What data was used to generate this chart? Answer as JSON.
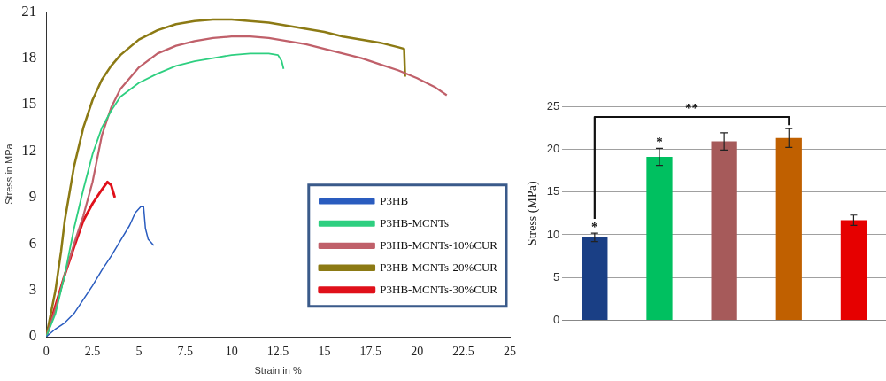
{
  "chart_data": [
    {
      "type": "line",
      "xlabel": "Strain in %",
      "ylabel": "Stress in MPa",
      "xlim": [
        0,
        25
      ],
      "ylim": [
        0,
        21
      ],
      "xticks": [
        0,
        2.5,
        5,
        7.5,
        10,
        12.5,
        15,
        17.5,
        20,
        22.5,
        25
      ],
      "yticks": [
        0,
        3,
        6,
        9,
        12,
        15,
        18,
        21
      ],
      "grid": false,
      "legend": "right",
      "marker": "none",
      "series": [
        {
          "name": "P3HB",
          "color": "#2a5cbf",
          "x": [
            0,
            0.5,
            1,
            1.5,
            2,
            2.5,
            3,
            3.5,
            4,
            4.5,
            4.8,
            5.1,
            5.25,
            5.35,
            5.5,
            5.8
          ],
          "values": [
            0,
            0.5,
            0.9,
            1.5,
            2.4,
            3.3,
            4.3,
            5.2,
            6.2,
            7.2,
            8,
            8.4,
            8.4,
            7,
            6.3,
            5.9
          ]
        },
        {
          "name": "P3HB-MCNTs",
          "color": "#2ecf80",
          "x": [
            0,
            0.5,
            1,
            1.5,
            2,
            2.5,
            3,
            3.5,
            4,
            5,
            6,
            7,
            8,
            9,
            10,
            11,
            12,
            12.5,
            12.7,
            12.8
          ],
          "values": [
            0,
            1.5,
            4,
            7,
            9.5,
            11.8,
            13.5,
            14.6,
            15.5,
            16.4,
            17,
            17.5,
            17.8,
            18,
            18.2,
            18.3,
            18.3,
            18.2,
            17.8,
            17.3
          ]
        },
        {
          "name": "P3HB-MCNTs-10%CUR",
          "color": "#c0606a",
          "x": [
            0,
            0.5,
            1,
            1.5,
            2,
            2.5,
            3,
            3.5,
            4,
            5,
            6,
            7,
            8,
            9,
            10,
            11,
            12,
            13,
            14,
            15,
            16,
            17,
            18,
            19,
            20,
            21,
            21.6
          ],
          "values": [
            0,
            1.8,
            4,
            6,
            7.8,
            10,
            13,
            14.8,
            16,
            17.4,
            18.3,
            18.8,
            19.1,
            19.3,
            19.4,
            19.4,
            19.3,
            19.1,
            18.9,
            18.6,
            18.3,
            18,
            17.6,
            17.2,
            16.7,
            16.1,
            15.6
          ]
        },
        {
          "name": "P3HB-MCNTs-20%CUR",
          "color": "#8c7a14",
          "x": [
            0,
            0.5,
            0.8,
            1,
            1.5,
            2,
            2.5,
            3,
            3.5,
            4,
            5,
            6,
            7,
            8,
            9,
            10,
            11,
            12,
            13,
            14,
            15,
            16,
            17,
            18,
            19,
            19.3,
            19.35
          ],
          "values": [
            0,
            3,
            5.5,
            7.5,
            11,
            13.5,
            15.3,
            16.6,
            17.5,
            18.2,
            19.2,
            19.8,
            20.2,
            20.4,
            20.5,
            20.5,
            20.4,
            20.3,
            20.1,
            19.9,
            19.7,
            19.4,
            19.2,
            19,
            18.7,
            18.6,
            16.8
          ]
        },
        {
          "name": "P3HB-MCNTs-30%CUR",
          "color": "#e0101a",
          "x": [
            0,
            0.5,
            1,
            1.5,
            2,
            2.5,
            3,
            3.3,
            3.5,
            3.7
          ],
          "values": [
            0,
            2,
            4,
            5.8,
            7.5,
            8.6,
            9.5,
            10,
            9.8,
            9
          ]
        }
      ]
    },
    {
      "type": "bar",
      "ylabel": "Stress (MPa)",
      "categories": [
        null,
        null,
        null,
        null,
        null
      ],
      "values": [
        9.7,
        19.1,
        20.9,
        21.3,
        11.7
      ],
      "colors": [
        "#1a3f85",
        "#00c060",
        "#a65a5a",
        "#c06000",
        "#e60000"
      ],
      "errors": [
        0.5,
        1,
        1,
        1.1,
        0.6
      ],
      "ylim": [
        0,
        25
      ],
      "yticks": [
        0,
        5,
        10,
        15,
        20,
        25
      ],
      "grid": "y",
      "legend": false,
      "annotations": [
        "*",
        "*",
        "**"
      ]
    }
  ]
}
